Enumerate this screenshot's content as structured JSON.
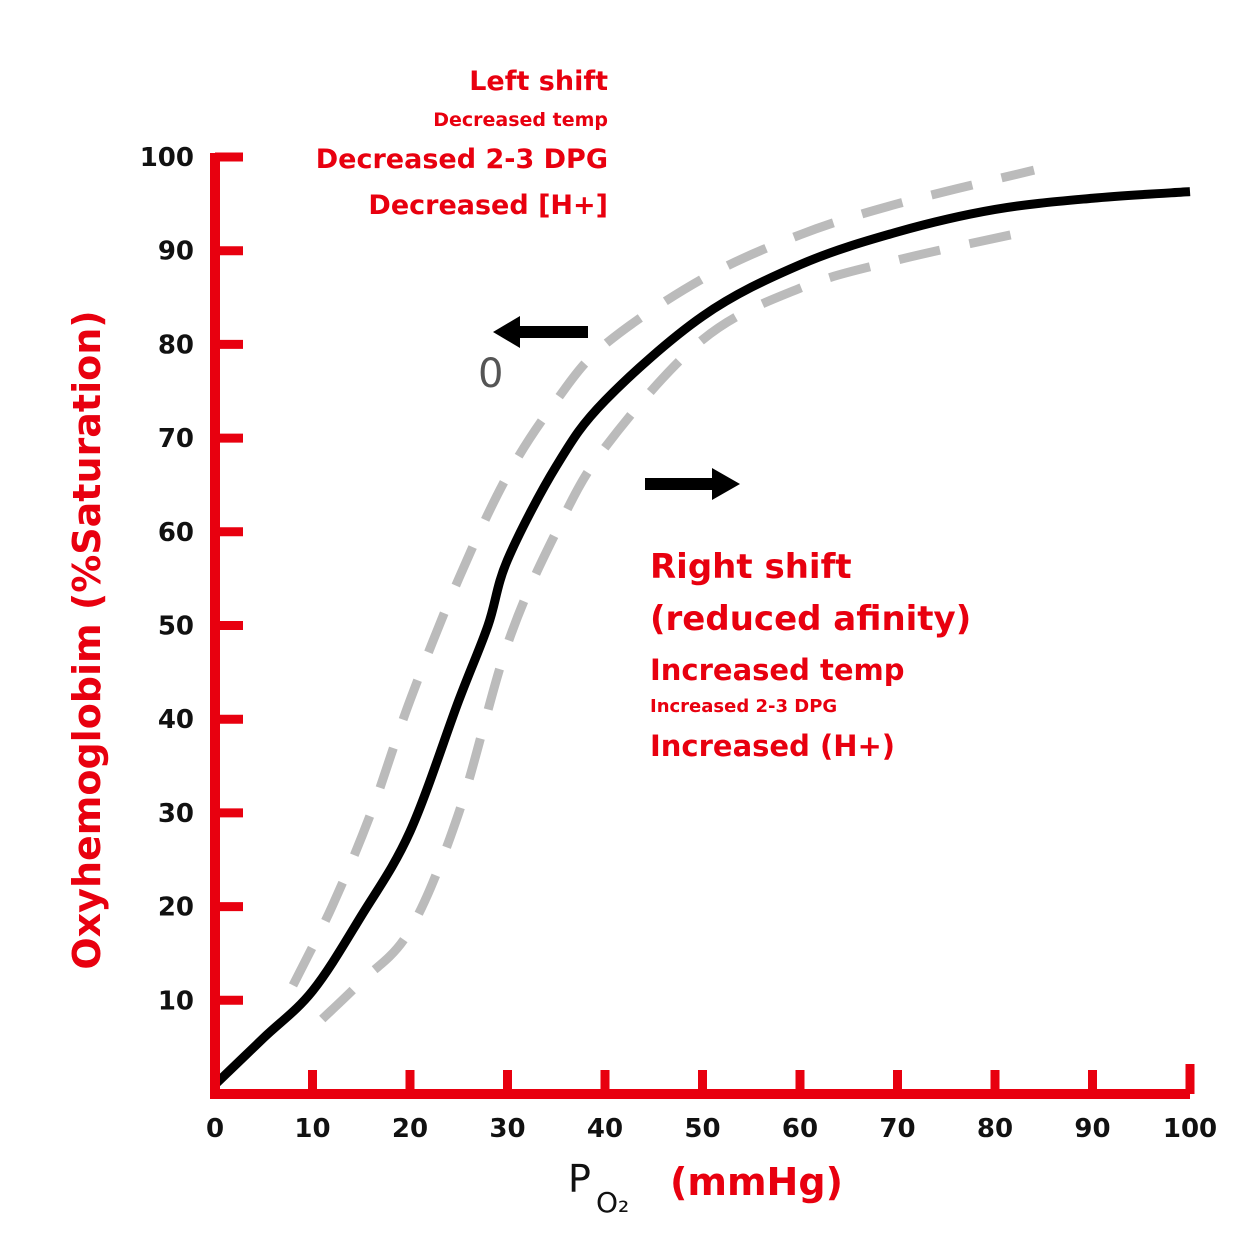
{
  "chart_data": {
    "type": "line",
    "title": "",
    "xlabel": {
      "main": "P",
      "subscript": "O₂",
      "unit": "(mmHg)"
    },
    "ylabel": "Oxyhemoglobim (%Saturation)",
    "xlim": [
      0,
      100
    ],
    "ylim": [
      0,
      100
    ],
    "x_ticks": [
      "0",
      "10",
      "20",
      "30",
      "40",
      "50",
      "60",
      "70",
      "80",
      "90",
      "100"
    ],
    "y_ticks": [
      "10",
      "20",
      "30",
      "40",
      "50",
      "60",
      "70",
      "80",
      "90",
      "100"
    ],
    "grid": false,
    "series": [
      {
        "style": "solid",
        "color": "#000000",
        "x": [
          0,
          5,
          10,
          15,
          20,
          25,
          28,
          30,
          35,
          40,
          50,
          60,
          70,
          80,
          90,
          100
        ],
        "y": [
          1,
          6,
          11,
          19,
          28,
          42,
          50,
          57,
          67,
          74,
          83,
          88.5,
          92,
          94.4,
          95.6,
          96.3
        ]
      },
      {
        "style": "dashed",
        "color": "#bbbbbb",
        "x": [
          8,
          12,
          16,
          20,
          25,
          30,
          35,
          40,
          50,
          60,
          70,
          84
        ],
        "y": [
          11.6,
          20,
          30,
          42,
          55,
          66,
          74,
          80,
          87,
          91.7,
          95,
          98.6
        ]
      },
      {
        "style": "dashed",
        "color": "#bbbbbb",
        "x": [
          11,
          15,
          20,
          25,
          30,
          35,
          40,
          50,
          60,
          70,
          83
        ],
        "y": [
          8,
          12,
          17.5,
          30,
          48,
          60,
          69,
          80.5,
          86,
          89,
          92
        ]
      }
    ],
    "annotations": {
      "left": [
        "Left shift",
        "Decreased temp",
        "Decreased 2-3 DPG",
        "Decreased [H+]"
      ],
      "right": [
        "Right shift",
        "(reduced afinity)",
        "Increased temp",
        "Increased 2-3 DPG",
        "Increased (H+)"
      ],
      "stray_label": "0"
    },
    "colors": {
      "axis": "#e8000f",
      "text": "#e8000f",
      "curve": "#000000",
      "dashed": "#bbbbbb"
    }
  }
}
